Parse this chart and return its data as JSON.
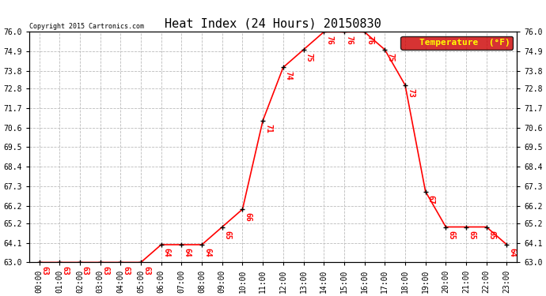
{
  "title": "Heat Index (24 Hours) 20150830",
  "copyright": "Copyright 2015 Cartronics.com",
  "legend_label": "Temperature  (°F)",
  "hours": [
    "00:00",
    "01:00",
    "02:00",
    "03:00",
    "04:00",
    "05:00",
    "06:00",
    "07:00",
    "08:00",
    "09:00",
    "10:00",
    "11:00",
    "12:00",
    "13:00",
    "14:00",
    "15:00",
    "16:00",
    "17:00",
    "18:00",
    "19:00",
    "20:00",
    "21:00",
    "22:00",
    "23:00"
  ],
  "values": [
    63,
    63,
    63,
    63,
    63,
    63,
    64,
    64,
    64,
    65,
    66,
    71,
    74,
    75,
    76,
    76,
    76,
    75,
    73,
    67,
    65,
    65,
    65,
    64
  ],
  "ylim_min": 63.0,
  "ylim_max": 76.0,
  "yticks": [
    63.0,
    64.1,
    65.2,
    66.2,
    67.3,
    68.4,
    69.5,
    70.6,
    71.7,
    72.8,
    73.8,
    74.9,
    76.0
  ],
  "ytick_labels": [
    "63.0",
    "64.1",
    "65.2",
    "66.2",
    "67.3",
    "68.4",
    "69.5",
    "70.6",
    "71.7",
    "72.8",
    "73.8",
    "74.9",
    "76.0"
  ],
  "line_color": "#ff0000",
  "bg_color": "#ffffff",
  "grid_color": "#bbbbbb",
  "title_fontsize": 11,
  "tick_fontsize": 7,
  "annotation_fontsize": 7,
  "copyright_fontsize": 6,
  "legend_bg": "#cc0000",
  "legend_text_color": "#ffff00",
  "legend_fontsize": 8
}
